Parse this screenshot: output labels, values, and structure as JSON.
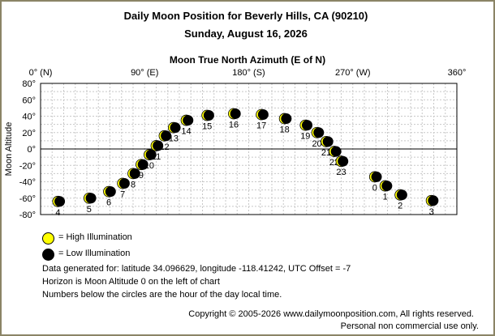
{
  "title": "Daily Moon Position for Beverly Hills, CA (90210)",
  "subtitle": "Sunday, August 16, 2026",
  "chart_data": {
    "type": "scatter",
    "xlabel": "Moon True North Azimuth (E of N)",
    "ylabel": "Moon Altitude",
    "xlim": [
      0,
      360
    ],
    "ylim": [
      -80,
      80
    ],
    "x_ticks": [
      {
        "value": 0,
        "label": "0° (N)"
      },
      {
        "value": 90,
        "label": "90° (E)"
      },
      {
        "value": 180,
        "label": "180° (S)"
      },
      {
        "value": 270,
        "label": "270° (W)"
      },
      {
        "value": 360,
        "label": "360°"
      }
    ],
    "y_ticks": [
      {
        "value": 80,
        "label": "80°"
      },
      {
        "value": 60,
        "label": "60°"
      },
      {
        "value": 40,
        "label": "40°"
      },
      {
        "value": 20,
        "label": "20°"
      },
      {
        "value": 0,
        "label": "0°"
      },
      {
        "value": -20,
        "label": "-20°"
      },
      {
        "value": -40,
        "label": "-40°"
      },
      {
        "value": -60,
        "label": "-60°"
      },
      {
        "value": -80,
        "label": "-80°"
      }
    ],
    "grid": true,
    "horizon_line": 0,
    "points": [
      {
        "hour": "0",
        "azimuth": 289,
        "altitude": -34
      },
      {
        "hour": "1",
        "azimuth": 298,
        "altitude": -45
      },
      {
        "hour": "2",
        "azimuth": 311,
        "altitude": -56
      },
      {
        "hour": "3",
        "azimuth": 338,
        "altitude": -63
      },
      {
        "hour": "4",
        "azimuth": 15,
        "altitude": -64
      },
      {
        "hour": "5",
        "azimuth": 42,
        "altitude": -60
      },
      {
        "hour": "6",
        "azimuth": 59,
        "altitude": -52
      },
      {
        "hour": "7",
        "azimuth": 71,
        "altitude": -42
      },
      {
        "hour": "8",
        "azimuth": 80,
        "altitude": -30
      },
      {
        "hour": "9",
        "azimuth": 87,
        "altitude": -19
      },
      {
        "hour": "10",
        "azimuth": 94,
        "altitude": -7
      },
      {
        "hour": "11",
        "azimuth": 100,
        "altitude": 4
      },
      {
        "hour": "12",
        "azimuth": 107,
        "altitude": 16
      },
      {
        "hour": "13",
        "azimuth": 115,
        "altitude": 26
      },
      {
        "hour": "14",
        "azimuth": 126,
        "altitude": 35
      },
      {
        "hour": "15",
        "azimuth": 144,
        "altitude": 41
      },
      {
        "hour": "16",
        "azimuth": 167,
        "altitude": 43
      },
      {
        "hour": "17",
        "azimuth": 191,
        "altitude": 42
      },
      {
        "hour": "18",
        "azimuth": 211,
        "altitude": 37
      },
      {
        "hour": "19",
        "azimuth": 229,
        "altitude": 29
      },
      {
        "hour": "20",
        "azimuth": 239,
        "altitude": 20
      },
      {
        "hour": "21",
        "azimuth": 247,
        "altitude": 9
      },
      {
        "hour": "22",
        "azimuth": 254,
        "altitude": -3
      },
      {
        "hour": "23",
        "azimuth": 260,
        "altitude": -15
      }
    ]
  },
  "legend": {
    "high_label": "= High Illumination",
    "low_label": "= Low Illumination",
    "high_color": "#ffff00",
    "low_color": "#000000"
  },
  "notes": [
    "Data generated for: latitude 34.096629, longitude -118.41242, UTC Offset = -7",
    "Horizon is Moon Altitude 0 on the left of chart",
    "Numbers below the circles are the hour of the day local time."
  ],
  "copyright": "Copyright © 2005-2026 www.dailymoonposition.com, All rights reserved.",
  "copyright2": "Personal non commercial use only."
}
